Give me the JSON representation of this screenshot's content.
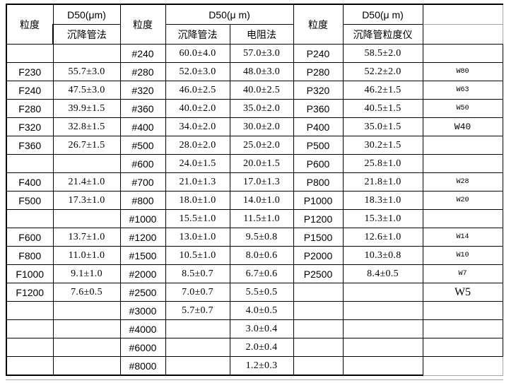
{
  "colors": {
    "background": "#ffffff",
    "border_black": "#000000",
    "border_gray": "#a6a6a6",
    "text": "#000000"
  },
  "table": {
    "header": {
      "group1": {
        "grade": "粒度",
        "d50": "D50(μm)",
        "method": "沉降管法"
      },
      "group2": {
        "grade": "粒度",
        "d50": "D50(μ m)",
        "method1": "沉降管法",
        "method2": "电阻法"
      },
      "group3": {
        "grade": "粒度",
        "d50": "D50(μ m)",
        "method": "沉降管粒度仪"
      },
      "w_column_top": "",
      "w_column_bottom": ""
    },
    "rows": [
      [
        "",
        "",
        "#240",
        "60.0±4.0",
        "57.0±3.0",
        "P240",
        "58.5±2.0",
        ""
      ],
      [
        "F230",
        "55.7±3.0",
        "#280",
        "52.0±3.0",
        "48.0±3.0",
        "P280",
        "52.2±2.0",
        "W80"
      ],
      [
        "F240",
        "47.5±3.0",
        "#320",
        "46.0±2.5",
        "40.0±2.5",
        "P320",
        "46.2±1.5",
        "W63"
      ],
      [
        "F280",
        "39.9±1.5",
        "#360",
        "40.0±2.0",
        "35.0±2.0",
        "P360",
        "40.5±1.5",
        "W50"
      ],
      [
        "F320",
        "32.8±1.5",
        "#400",
        "34.0±2.0",
        "30.0±2.0",
        "P400",
        "35.0±1.5",
        "W40"
      ],
      [
        "F360",
        "26.7±1.5",
        "#500",
        "28.0±2.0",
        "25.0±2.0",
        "P500",
        "30.2±1.5",
        ""
      ],
      [
        "",
        "",
        "#600",
        "24.0±1.5",
        "20.0±1.5",
        "P600",
        "25.8±1.0",
        ""
      ],
      [
        "F400",
        "21.4±1.0",
        "#700",
        "21.0±1.3",
        "17.0±1.3",
        "P800",
        "21.8±1.0",
        "W28"
      ],
      [
        "F500",
        "17.3±1.0",
        "#800",
        "18.0±1.0",
        "14.0±1.0",
        "P1000",
        "18.3±1.0",
        "W20"
      ],
      [
        "",
        "",
        "#1000",
        "15.5±1.0",
        "11.5±1.0",
        "P1200",
        "15.3±1.0",
        ""
      ],
      [
        "F600",
        "13.7±1.0",
        "#1200",
        "13.0±1.0",
        "9.5±0.8",
        "P1500",
        "12.6±1.0",
        "W14"
      ],
      [
        "F800",
        "11.0±1.0",
        "#1500",
        "10.5±1.0",
        "8.0±0.6",
        "P2000",
        "10.3±0.8",
        "W10"
      ],
      [
        "F1000",
        "9.1±1.0",
        "#2000",
        "8.5±0.7",
        "6.7±0.6",
        "P2500",
        "8.4±0.5",
        "W7"
      ],
      [
        "F1200",
        "7.6±0.5",
        "#2500",
        "7.0±0.7",
        "5.5±0.5",
        "",
        "",
        "W5"
      ],
      [
        "",
        "",
        "#3000",
        "5.7±0.7",
        "4.0±0.5",
        "",
        "",
        ""
      ],
      [
        "",
        "",
        "#4000",
        "",
        "3.0±0.4",
        "",
        "",
        ""
      ],
      [
        "",
        "",
        "#6000",
        "",
        "2.0±0.4",
        "",
        "",
        ""
      ],
      [
        "",
        "",
        "#8000",
        "",
        "1.2±0.3",
        "",
        "",
        ""
      ]
    ]
  }
}
